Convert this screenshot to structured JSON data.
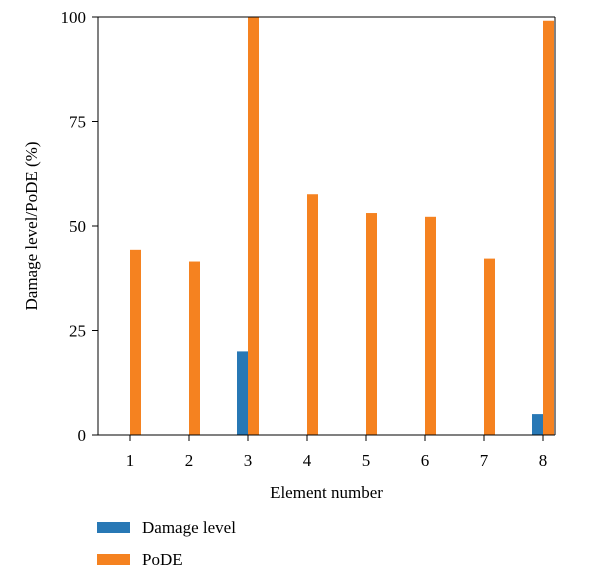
{
  "chart_data": {
    "type": "bar",
    "categories": [
      "1",
      "2",
      "3",
      "4",
      "5",
      "6",
      "7",
      "8"
    ],
    "series": [
      {
        "name": "Damage level",
        "color": "#2878b5",
        "values": [
          0,
          0,
          20,
          0,
          0,
          0,
          0,
          5
        ]
      },
      {
        "name": "PoDE",
        "color": "#f58220",
        "values": [
          44.3,
          41.5,
          100,
          57.6,
          53.1,
          52.2,
          42.2,
          99.1
        ]
      }
    ],
    "title": "",
    "xlabel": "Element number",
    "ylabel": "Damage level/PoDE (%)",
    "ylim": [
      0,
      100
    ],
    "yticks": [
      0,
      25,
      50,
      75,
      100
    ],
    "grid": false,
    "legend_position": "bottom-left"
  }
}
